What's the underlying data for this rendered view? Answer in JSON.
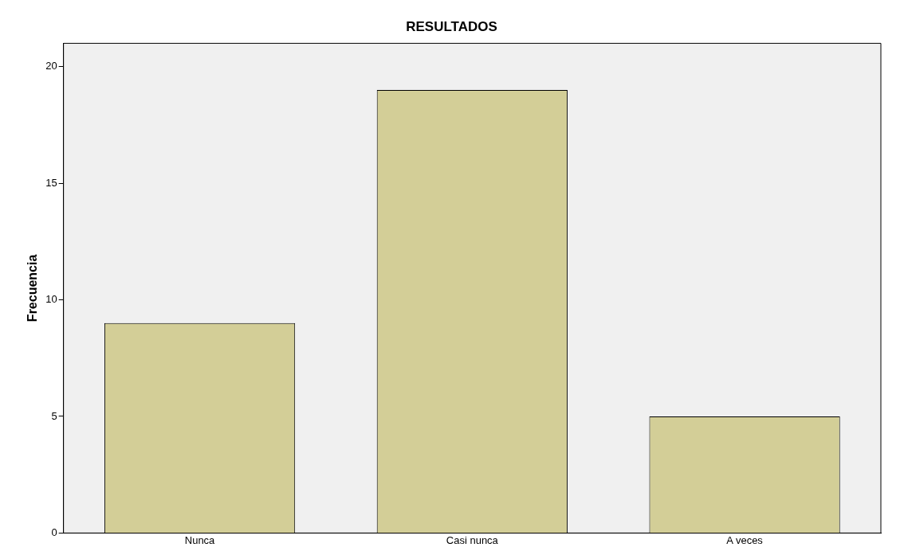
{
  "chart_data": {
    "type": "bar",
    "title": "RESULTADOS",
    "ylabel": "Frecuencia",
    "categories": [
      "Nunca",
      "Casi nunca",
      "A veces"
    ],
    "values": [
      9,
      19,
      5
    ],
    "color": "#d3ce97",
    "ylim": [
      0,
      21
    ],
    "yticks": [
      0,
      5,
      10,
      15,
      20
    ],
    "grid": false,
    "legend": false
  }
}
